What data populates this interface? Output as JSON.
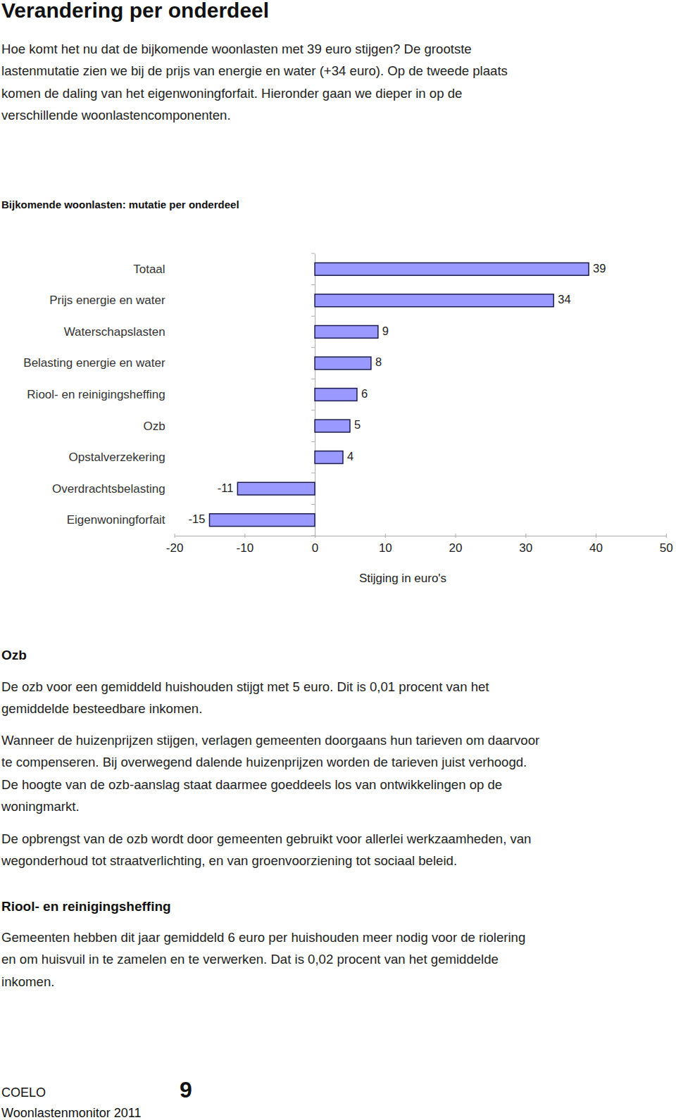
{
  "header": {
    "title": "Verandering per onderdeel"
  },
  "intro": {
    "lines": [
      "Hoe komt het nu dat de bijkomende woonlasten met 39 euro stijgen? De grootste",
      "lastenmutatie zien we bij de prijs van energie en water (+34 euro). Op de tweede plaats",
      "komen de daling van het eigenwoningforfait. Hieronder gaan we dieper in op de",
      "verschillende woonlastencomponenten."
    ]
  },
  "chart_data": {
    "type": "bar",
    "orientation": "horizontal",
    "title": "Bijkomende woonlasten: mutatie per onderdeel",
    "categories": [
      "Totaal",
      "Prijs energie en water",
      "Waterschapslasten",
      "Belasting energie en water",
      "Riool- en reinigingsheffing",
      "Ozb",
      "Opstalverzekering",
      "Overdrachtsbelasting",
      "Eigenwoningforfait"
    ],
    "values": [
      39,
      34,
      9,
      8,
      6,
      5,
      4,
      -11,
      -15
    ],
    "color": "#9999ff",
    "xlabel": "Stijging in euro's",
    "xlim": [
      -20,
      50
    ],
    "xticks": [
      -20,
      -10,
      0,
      10,
      20,
      30,
      40,
      50
    ],
    "data_labels": true,
    "grid": false
  },
  "sections": [
    {
      "heading": "Ozb",
      "paragraphs": [
        [
          "De ozb voor een gemiddeld huishouden stijgt met 5 euro. Dit is 0,01 procent van het",
          "gemiddelde besteedbare inkomen."
        ],
        [
          "Wanneer de huizenprijzen stijgen, verlagen gemeenten doorgaans hun tarieven om daarvoor",
          "te compenseren. Bij overwegend dalende huizenprijzen worden de tarieven juist verhoogd.",
          "De hoogte van de ozb-aanslag staat daarmee goeddeels los van ontwikkelingen op de",
          "woningmarkt."
        ],
        [
          "De opbrengst van de ozb wordt door gemeenten gebruikt voor allerlei werkzaamheden, van",
          "wegonderhoud tot straatverlichting, en van groenvoorziening tot sociaal beleid."
        ]
      ]
    },
    {
      "heading": "Riool- en reinigingsheffing",
      "paragraphs": [
        [
          "Gemeenten hebben dit jaar gemiddeld 6 euro per huishouden meer nodig voor de riolering",
          "en om huisvuil in te zamelen en te verwerken. Dat is 0,02 procent van het gemiddelde",
          "inkomen."
        ]
      ]
    }
  ],
  "footer": {
    "publisher": "COELO",
    "page": "9",
    "publication": "Woonlastenmonitor 2011"
  }
}
